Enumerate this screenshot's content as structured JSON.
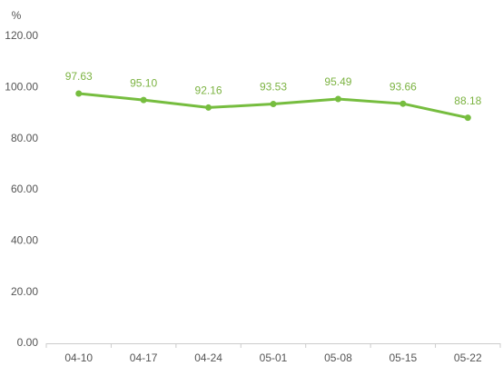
{
  "chart_data": {
    "type": "line",
    "y_unit": "%",
    "categories": [
      "04-10",
      "04-17",
      "04-24",
      "05-01",
      "05-08",
      "05-15",
      "05-22"
    ],
    "series": [
      {
        "color": "#76bd3f",
        "values": [
          97.63,
          95.1,
          92.16,
          93.53,
          95.49,
          93.66,
          88.18
        ],
        "value_labels": [
          "97.63",
          "95.10",
          "92.16",
          "93.53",
          "95.49",
          "93.66",
          "88.18"
        ]
      }
    ],
    "ylim": [
      0,
      120
    ],
    "yticks": [
      {
        "value": 0,
        "label": "0.00"
      },
      {
        "value": 20,
        "label": "20.00"
      },
      {
        "value": 40,
        "label": "40.00"
      },
      {
        "value": 60,
        "label": "60.00"
      },
      {
        "value": 80,
        "label": "80.00"
      },
      {
        "value": 100,
        "label": "100.00"
      },
      {
        "value": 120,
        "label": "120.00"
      }
    ],
    "grid": false
  }
}
